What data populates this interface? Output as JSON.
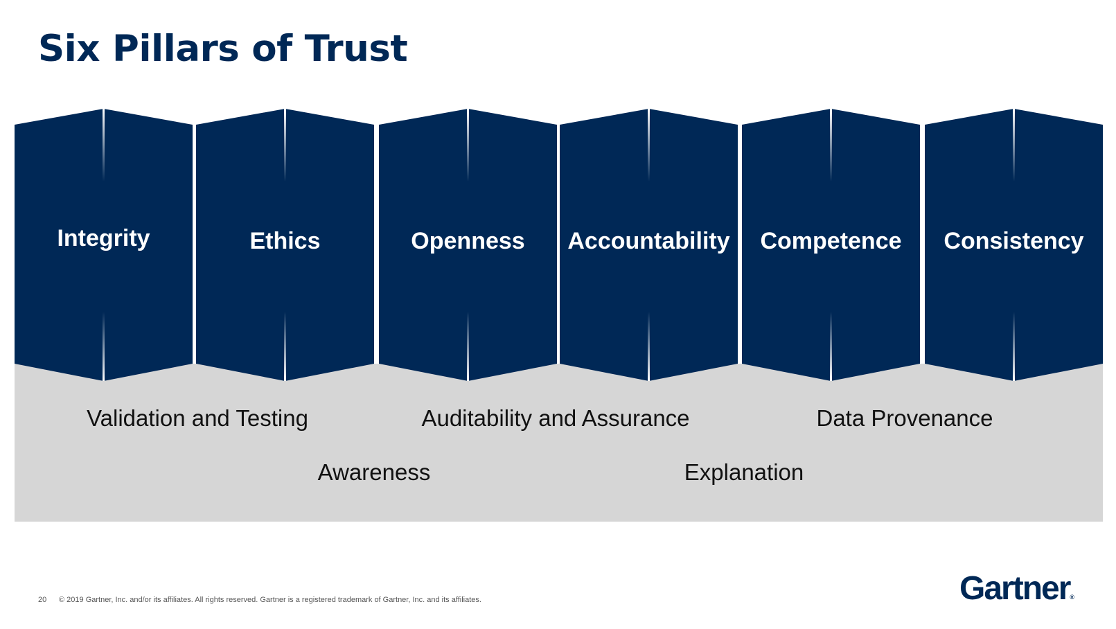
{
  "title": "Six Pillars of Trust",
  "colors": {
    "title": "#002856",
    "pillar_fill": "#002856",
    "pillar_text": "#ffffff",
    "foundation_fill": "#d6d6d6",
    "foundation_text": "#111111"
  },
  "pillars": [
    {
      "label": "Integrity"
    },
    {
      "label": "Ethics"
    },
    {
      "label": "Openness"
    },
    {
      "label": "Accountability"
    },
    {
      "label": "Competence"
    },
    {
      "label": "Consistency"
    }
  ],
  "foundation": {
    "row1": [
      "Validation and Testing",
      "Auditability and Assurance",
      "Data Provenance"
    ],
    "row2": [
      "Awareness",
      "Explanation"
    ]
  },
  "footer": {
    "page_number": "20",
    "copyright": "© 2019 Gartner, Inc. and/or its affiliates. All rights reserved. Gartner is a registered trademark of Gartner, Inc. and its affiliates."
  },
  "logo": {
    "text": "Gartner",
    "mark": "®"
  }
}
